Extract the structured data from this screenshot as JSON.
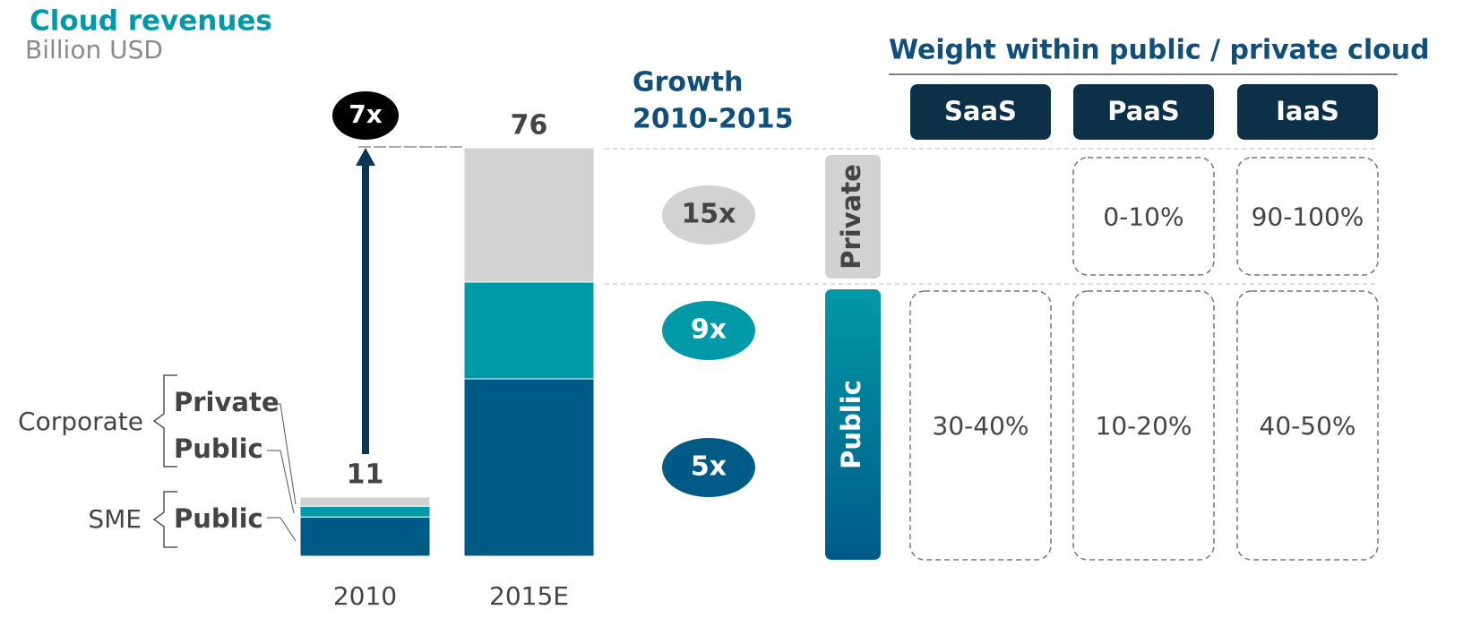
{
  "chart_data": {
    "type": "stacked_bar",
    "title": "Cloud revenues",
    "subtitle": "Billion USD",
    "categories": [
      "2010",
      "2015E"
    ],
    "series": [
      {
        "name": "Public",
        "group": "SME",
        "color": "#005a86",
        "values": [
          7.3,
          33
        ]
      },
      {
        "name": "Public",
        "group": "Corporate",
        "color": "#0099a8",
        "values": [
          2,
          18
        ]
      },
      {
        "name": "Private",
        "group": "Corporate",
        "color": "#d2d2d2",
        "values": [
          1.7,
          25
        ]
      }
    ],
    "totals": [
      11,
      76
    ],
    "ylim": [
      0,
      76
    ],
    "total_growth": "7x",
    "growth_title": [
      "Growth",
      "2010-2015"
    ],
    "growth_labels": [
      "5x",
      "9x",
      "15x"
    ]
  },
  "weights": {
    "title": "Weight within public / private cloud",
    "columns": [
      "SaaS",
      "PaaS",
      "IaaS"
    ],
    "rows": [
      {
        "label": "Private",
        "cells": [
          null,
          "0-10%",
          "90-100%"
        ]
      },
      {
        "label": "Public",
        "cells": [
          "30-40%",
          "10-20%",
          "40-50%"
        ]
      }
    ]
  }
}
